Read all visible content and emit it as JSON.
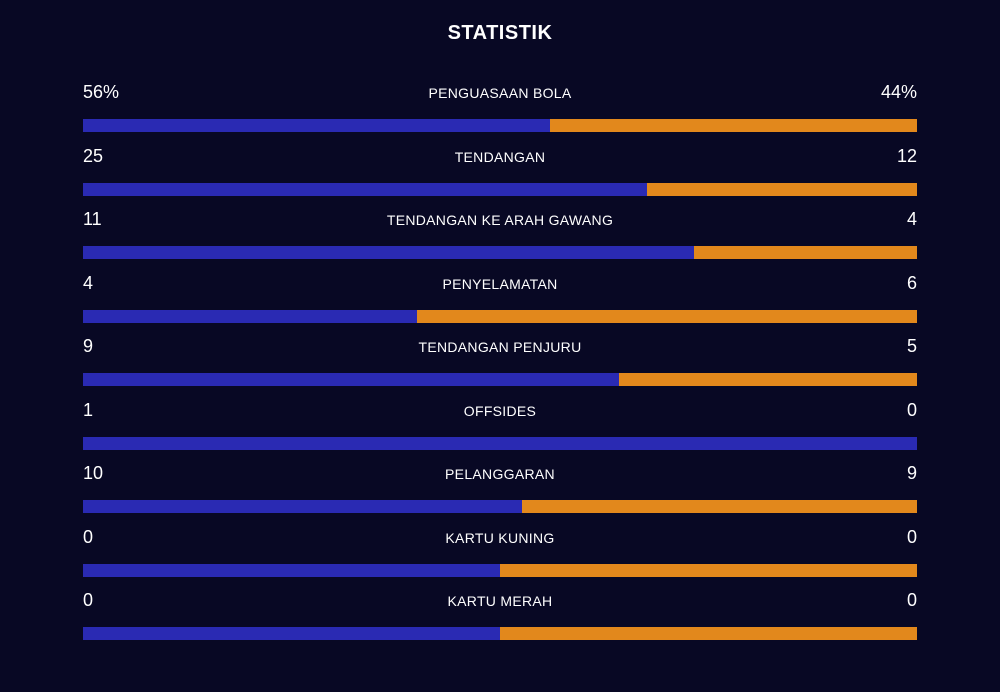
{
  "title": "STATISTIK",
  "colors": {
    "background": "#080824",
    "home": "#2a2ab3",
    "away": "#e2881c"
  },
  "stats": [
    {
      "label": "PENGUASAAN BOLA",
      "home": "56%",
      "away": "44%",
      "home_share": 0.56
    },
    {
      "label": "TENDANGAN",
      "home": "25",
      "away": "12",
      "home_share": 0.676
    },
    {
      "label": "TENDANGAN KE ARAH GAWANG",
      "home": "11",
      "away": "4",
      "home_share": 0.733
    },
    {
      "label": "PENYELAMATAN",
      "home": "4",
      "away": "6",
      "home_share": 0.4
    },
    {
      "label": "TENDANGAN PENJURU",
      "home": "9",
      "away": "5",
      "home_share": 0.643
    },
    {
      "label": "OFFSIDES",
      "home": "1",
      "away": "0",
      "home_share": 1.0
    },
    {
      "label": "PELANGGARAN",
      "home": "10",
      "away": "9",
      "home_share": 0.526
    },
    {
      "label": "KARTU KUNING",
      "home": "0",
      "away": "0",
      "home_share": 0.5
    },
    {
      "label": "KARTU MERAH",
      "home": "0",
      "away": "0",
      "home_share": 0.5
    }
  ]
}
